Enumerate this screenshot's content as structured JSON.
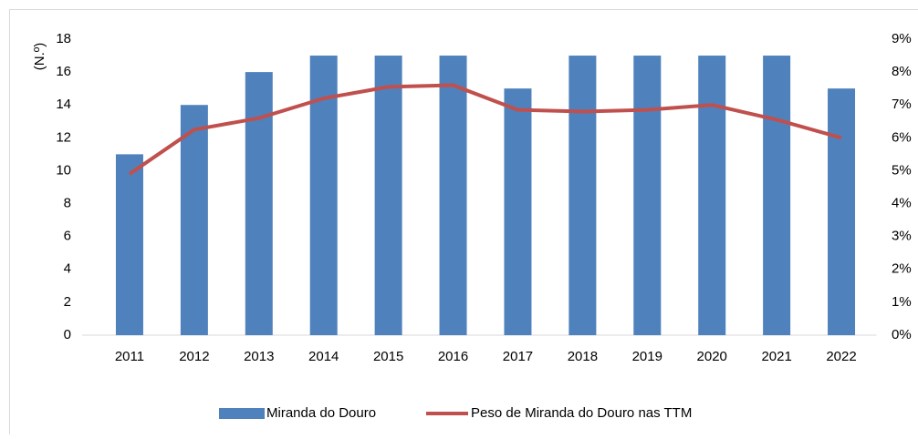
{
  "chart_data": {
    "type": "bar",
    "ylabel": "(N.º)",
    "categories": [
      "2011",
      "2012",
      "2013",
      "2014",
      "2015",
      "2016",
      "2017",
      "2018",
      "2019",
      "2020",
      "2021",
      "2022"
    ],
    "series": [
      {
        "name": "Miranda do Douro",
        "type": "bar",
        "color": "#4f81bd",
        "values": [
          11,
          14,
          16,
          17,
          17,
          17,
          15,
          17,
          17,
          17,
          17,
          15
        ]
      },
      {
        "name": "Peso de Miranda do Douro nas TTM",
        "type": "line",
        "axis": "y2",
        "color": "#c0504d",
        "values": [
          4.9,
          6.25,
          6.6,
          7.2,
          7.55,
          7.6,
          6.85,
          6.8,
          6.85,
          7.0,
          6.55,
          6.0
        ]
      }
    ],
    "ylim": [
      0,
      18
    ],
    "yticks": [
      0,
      2,
      4,
      6,
      8,
      10,
      12,
      14,
      16,
      18
    ],
    "y2lim": [
      0,
      9
    ],
    "y2ticks": [
      {
        "value": 0,
        "label": "0%"
      },
      {
        "value": 1,
        "label": "1%"
      },
      {
        "value": 2,
        "label": "2%"
      },
      {
        "value": 3,
        "label": "3%"
      },
      {
        "value": 4,
        "label": "4%"
      },
      {
        "value": 5,
        "label": "5%"
      },
      {
        "value": 6,
        "label": "6%"
      },
      {
        "value": 7,
        "label": "7%"
      },
      {
        "value": 8,
        "label": "8%"
      },
      {
        "value": 9,
        "label": "9%"
      }
    ],
    "legend": "bottom"
  }
}
